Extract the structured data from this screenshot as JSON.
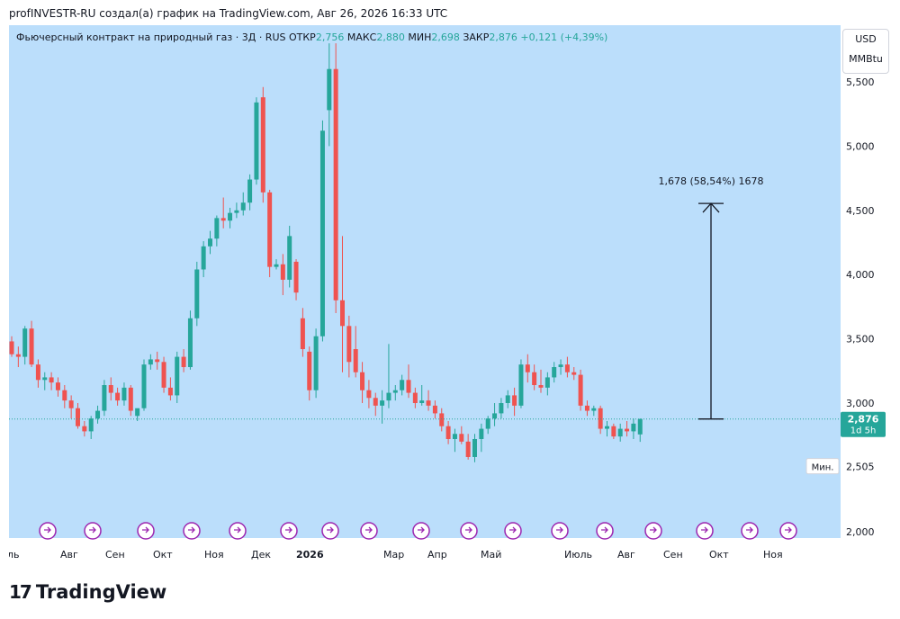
{
  "header": "profINVESTR-RU создал(а) график на TradingView.com, Авг 26, 2026 16:33 UTC",
  "legend": {
    "title": "Фьючерсный контракт на природный газ · 3Д · RUS",
    "open_label": "ОТКР",
    "open_value": "2,756",
    "high_label": "МАКС",
    "high_value": "2,880",
    "low_label": "МИН",
    "low_value": "2,698",
    "close_label": "ЗАКР",
    "close_value": "2,876",
    "change": "+0,121 (+4,39%)"
  },
  "units": {
    "currency": "USD",
    "unit": "MMBtu"
  },
  "price_tag": {
    "value": "2,876",
    "countdown": "1d 5h"
  },
  "min_tag": {
    "label": "Мин.",
    "value": "2,505"
  },
  "measure_label": "1,678 (58,54%) 1678",
  "brand": "TradingView",
  "colors": {
    "background": "#bbdefb",
    "up": "#26a69a",
    "down": "#ef5350",
    "axis_text": "#131722"
  },
  "chart_data": {
    "type": "candlestick",
    "y_ticks": [
      "5,500",
      "5,000",
      "4,500",
      "4,000",
      "3,500",
      "3,000",
      "2,000"
    ],
    "ylim": [
      1.95,
      5.8
    ],
    "x_ticks": [
      "ль",
      "Авг",
      "Сен",
      "Окт",
      "Ноя",
      "Дек",
      "2026",
      "Мар",
      "Апр",
      "Май",
      "Июль",
      "Авг",
      "Сен",
      "Окт",
      "Ноя"
    ],
    "series": [
      {
        "values": [
          [
            3.48,
            3.52,
            3.36,
            3.38
          ],
          [
            3.38,
            3.44,
            3.28,
            3.36
          ],
          [
            3.36,
            3.6,
            3.3,
            3.58
          ],
          [
            3.58,
            3.64,
            3.28,
            3.3
          ],
          [
            3.3,
            3.34,
            3.12,
            3.18
          ],
          [
            3.18,
            3.24,
            3.1,
            3.2
          ],
          [
            3.2,
            3.24,
            3.1,
            3.16
          ],
          [
            3.16,
            3.2,
            3.05,
            3.1
          ],
          [
            3.1,
            3.14,
            2.96,
            3.02
          ],
          [
            3.02,
            3.06,
            2.88,
            2.96
          ],
          [
            2.96,
            3,
            2.8,
            2.82
          ],
          [
            2.82,
            2.86,
            2.74,
            2.78
          ],
          [
            2.78,
            2.9,
            2.72,
            2.88
          ],
          [
            2.88,
            2.98,
            2.84,
            2.94
          ],
          [
            2.94,
            3.18,
            2.9,
            3.14
          ],
          [
            3.14,
            3.2,
            3.02,
            3.08
          ],
          [
            3.08,
            3.12,
            2.98,
            3.02
          ],
          [
            3.02,
            3.16,
            2.98,
            3.12
          ],
          [
            3.12,
            3.14,
            2.9,
            2.94
          ],
          [
            2.9,
            2.94,
            2.86,
            2.96
          ],
          [
            2.96,
            3.34,
            2.94,
            3.3
          ],
          [
            3.3,
            3.38,
            3.26,
            3.34
          ],
          [
            3.34,
            3.4,
            3.26,
            3.32
          ],
          [
            3.32,
            3.36,
            3.08,
            3.12
          ],
          [
            3.12,
            3.2,
            3.02,
            3.06
          ],
          [
            3.06,
            3.4,
            3,
            3.36
          ],
          [
            3.36,
            3.42,
            3.24,
            3.28
          ],
          [
            3.28,
            3.72,
            3.26,
            3.66
          ],
          [
            3.66,
            4.1,
            3.6,
            4.04
          ],
          [
            4.04,
            4.26,
            3.98,
            4.22
          ],
          [
            4.22,
            4.34,
            4.16,
            4.28
          ],
          [
            4.28,
            4.46,
            4.22,
            4.44
          ],
          [
            4.44,
            4.6,
            4.36,
            4.42
          ],
          [
            4.42,
            4.52,
            4.36,
            4.48
          ],
          [
            4.48,
            4.56,
            4.44,
            4.5
          ],
          [
            4.5,
            4.64,
            4.46,
            4.56
          ],
          [
            4.56,
            4.78,
            4.5,
            4.74
          ],
          [
            4.74,
            5.38,
            4.7,
            5.34
          ],
          [
            5.38,
            5.46,
            4.56,
            4.64
          ],
          [
            4.64,
            4.66,
            3.98,
            4.06
          ],
          [
            4.06,
            4.12,
            4.04,
            4.08
          ],
          [
            4.08,
            4.16,
            3.84,
            3.96
          ],
          [
            3.96,
            4.38,
            3.9,
            4.3
          ],
          [
            4.1,
            4.12,
            3.8,
            3.86
          ],
          [
            3.66,
            3.74,
            3.36,
            3.42
          ],
          [
            3.4,
            3.44,
            3.02,
            3.1
          ],
          [
            3.1,
            3.58,
            3.04,
            3.52
          ],
          [
            3.52,
            5.2,
            3.48,
            5.12
          ],
          [
            5.28,
            5.8,
            5.0,
            5.6
          ],
          [
            5.6,
            5.8,
            3.7,
            3.8
          ],
          [
            3.8,
            4.3,
            3.24,
            3.6
          ],
          [
            3.6,
            3.68,
            3.2,
            3.32
          ],
          [
            3.42,
            3.6,
            3.2,
            3.24
          ],
          [
            3.24,
            3.32,
            3.0,
            3.1
          ],
          [
            3.1,
            3.18,
            2.96,
            3.04
          ],
          [
            3.04,
            3.08,
            2.9,
            2.98
          ],
          [
            2.98,
            3.1,
            2.84,
            3.02
          ],
          [
            3.02,
            3.46,
            2.96,
            3.08
          ],
          [
            3.08,
            3.14,
            3.02,
            3.1
          ],
          [
            3.1,
            3.22,
            3.06,
            3.18
          ],
          [
            3.18,
            3.3,
            3.04,
            3.08
          ],
          [
            3.08,
            3.12,
            2.96,
            3.0
          ],
          [
            3.0,
            3.14,
            2.98,
            3.02
          ],
          [
            3.02,
            3.1,
            2.94,
            2.98
          ],
          [
            2.98,
            3.02,
            2.88,
            2.92
          ],
          [
            2.92,
            2.96,
            2.78,
            2.82
          ],
          [
            2.82,
            2.86,
            2.68,
            2.72
          ],
          [
            2.72,
            2.8,
            2.62,
            2.76
          ],
          [
            2.76,
            2.82,
            2.68,
            2.7
          ],
          [
            2.7,
            2.76,
            2.56,
            2.58
          ],
          [
            2.58,
            2.76,
            2.54,
            2.72
          ],
          [
            2.72,
            2.84,
            2.62,
            2.8
          ],
          [
            2.8,
            2.9,
            2.76,
            2.88
          ],
          [
            2.88,
            3.0,
            2.82,
            2.92
          ],
          [
            2.92,
            3.04,
            2.88,
            3.0
          ],
          [
            3.0,
            3.1,
            2.96,
            3.06
          ],
          [
            3.06,
            3.12,
            2.9,
            2.98
          ],
          [
            2.98,
            3.34,
            2.96,
            3.3
          ],
          [
            3.3,
            3.38,
            3.16,
            3.24
          ],
          [
            3.24,
            3.3,
            3.1,
            3.14
          ],
          [
            3.14,
            3.26,
            3.08,
            3.12
          ],
          [
            3.12,
            3.24,
            3.06,
            3.2
          ],
          [
            3.2,
            3.32,
            3.16,
            3.28
          ],
          [
            3.28,
            3.34,
            3.22,
            3.3
          ],
          [
            3.3,
            3.36,
            3.2,
            3.24
          ],
          [
            3.24,
            3.28,
            3.18,
            3.22
          ],
          [
            3.22,
            3.26,
            2.94,
            2.98
          ],
          [
            2.98,
            3.02,
            2.9,
            2.94
          ],
          [
            2.94,
            2.98,
            2.9,
            2.96
          ],
          [
            2.96,
            2.98,
            2.76,
            2.8
          ],
          [
            2.8,
            2.86,
            2.74,
            2.82
          ],
          [
            2.82,
            2.84,
            2.72,
            2.74
          ],
          [
            2.74,
            2.84,
            2.7,
            2.8
          ],
          [
            2.8,
            2.86,
            2.74,
            2.78
          ],
          [
            2.78,
            2.88,
            2.72,
            2.84
          ],
          [
            2.756,
            2.88,
            2.698,
            2.876
          ]
        ]
      }
    ],
    "measure": {
      "from": 2.876,
      "to": 4.554,
      "change": "1,678 (58,54%) 1678"
    },
    "last_price": 2.876,
    "min_price": 2.505,
    "grid": false
  }
}
